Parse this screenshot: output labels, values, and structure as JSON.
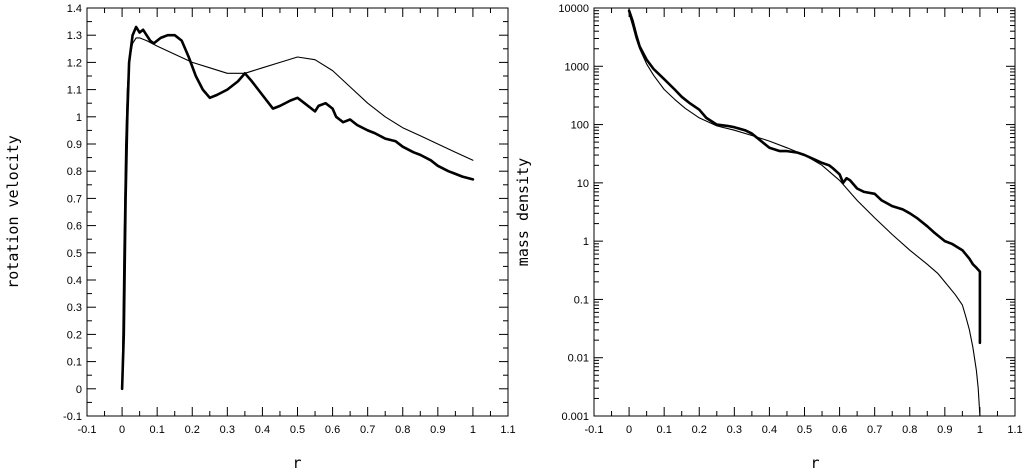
{
  "chart_data": [
    {
      "type": "line",
      "xlabel": "r",
      "ylabel": "rotation velocity",
      "xlim": [
        -0.1,
        1.1
      ],
      "ylim": [
        -0.1,
        1.4
      ],
      "xscale": "linear",
      "yscale": "linear",
      "xticks": [
        "-0.1",
        "0",
        "0.1",
        "0.2",
        "0.3",
        "0.4",
        "0.5",
        "0.6",
        "0.7",
        "0.8",
        "0.9",
        "1",
        "1.1"
      ],
      "yticks": [
        "-0.1",
        "0",
        "0.1",
        "0.2",
        "0.3",
        "0.4",
        "0.5",
        "0.6",
        "0.7",
        "0.8",
        "0.9",
        "1",
        "1.1",
        "1.2",
        "1.3",
        "1.4"
      ],
      "grid": false,
      "series": [
        {
          "style": "thin",
          "x": [
            0,
            0.005,
            0.01,
            0.015,
            0.02,
            0.03,
            0.04,
            0.05,
            0.07,
            0.1,
            0.15,
            0.2,
            0.25,
            0.3,
            0.35,
            0.4,
            0.45,
            0.5,
            0.55,
            0.6,
            0.65,
            0.7,
            0.75,
            0.8,
            0.85,
            0.9,
            0.95,
            1.0
          ],
          "y": [
            0,
            0.5,
            0.9,
            1.1,
            1.2,
            1.27,
            1.29,
            1.29,
            1.28,
            1.26,
            1.23,
            1.2,
            1.18,
            1.16,
            1.16,
            1.18,
            1.2,
            1.22,
            1.21,
            1.17,
            1.11,
            1.05,
            1.0,
            0.96,
            0.93,
            0.9,
            0.87,
            0.84
          ]
        },
        {
          "style": "thick",
          "x": [
            0,
            0.005,
            0.01,
            0.015,
            0.02,
            0.03,
            0.04,
            0.045,
            0.05,
            0.06,
            0.07,
            0.08,
            0.09,
            0.1,
            0.11,
            0.13,
            0.15,
            0.17,
            0.19,
            0.21,
            0.23,
            0.25,
            0.27,
            0.3,
            0.33,
            0.35,
            0.37,
            0.4,
            0.43,
            0.45,
            0.48,
            0.5,
            0.52,
            0.55,
            0.56,
            0.58,
            0.6,
            0.61,
            0.62,
            0.63,
            0.65,
            0.67,
            0.7,
            0.72,
            0.75,
            0.78,
            0.8,
            0.83,
            0.85,
            0.88,
            0.9,
            0.93,
            0.95,
            0.97,
            1.0
          ],
          "y": [
            0,
            0.2,
            0.7,
            1.0,
            1.2,
            1.3,
            1.33,
            1.32,
            1.31,
            1.32,
            1.3,
            1.28,
            1.27,
            1.28,
            1.29,
            1.3,
            1.3,
            1.28,
            1.22,
            1.15,
            1.1,
            1.07,
            1.08,
            1.1,
            1.13,
            1.16,
            1.13,
            1.08,
            1.03,
            1.04,
            1.06,
            1.07,
            1.05,
            1.02,
            1.04,
            1.05,
            1.03,
            1.0,
            0.99,
            0.98,
            0.99,
            0.97,
            0.95,
            0.94,
            0.92,
            0.91,
            0.89,
            0.87,
            0.86,
            0.84,
            0.82,
            0.8,
            0.79,
            0.78,
            0.77
          ]
        }
      ]
    },
    {
      "type": "line",
      "xlabel": "r",
      "ylabel": "mass density",
      "xlim": [
        -0.1,
        1.1
      ],
      "ylim": [
        0.001,
        10000
      ],
      "xscale": "linear",
      "yscale": "log",
      "xticks": [
        "-0.1",
        "0",
        "0.1",
        "0.2",
        "0.3",
        "0.4",
        "0.5",
        "0.6",
        "0.7",
        "0.8",
        "0.9",
        "1",
        "1.1"
      ],
      "yticks": [
        "0.001",
        "0.01",
        "0.1",
        "1",
        "10",
        "100",
        "1000",
        "10000"
      ],
      "grid": false,
      "series": [
        {
          "style": "thin",
          "x": [
            0,
            0.01,
            0.02,
            0.03,
            0.05,
            0.07,
            0.1,
            0.13,
            0.16,
            0.2,
            0.25,
            0.3,
            0.35,
            0.4,
            0.45,
            0.5,
            0.55,
            0.6,
            0.65,
            0.7,
            0.75,
            0.8,
            0.85,
            0.88,
            0.9,
            0.93,
            0.95,
            0.96,
            0.97,
            0.98,
            0.99,
            0.995,
            1.0
          ],
          "y": [
            8000,
            5000,
            3000,
            2000,
            1100,
            700,
            400,
            270,
            190,
            130,
            95,
            80,
            65,
            52,
            40,
            30,
            20,
            11,
            5,
            2.5,
            1.3,
            0.7,
            0.4,
            0.28,
            0.2,
            0.12,
            0.08,
            0.05,
            0.03,
            0.015,
            0.006,
            0.003,
            0.001
          ]
        },
        {
          "style": "thick",
          "x": [
            0,
            0.01,
            0.02,
            0.03,
            0.05,
            0.07,
            0.1,
            0.13,
            0.15,
            0.17,
            0.2,
            0.22,
            0.25,
            0.28,
            0.3,
            0.33,
            0.35,
            0.38,
            0.4,
            0.43,
            0.45,
            0.48,
            0.5,
            0.53,
            0.55,
            0.57,
            0.58,
            0.6,
            0.61,
            0.62,
            0.63,
            0.65,
            0.67,
            0.7,
            0.72,
            0.75,
            0.78,
            0.8,
            0.82,
            0.85,
            0.87,
            0.9,
            0.92,
            0.95,
            0.97,
            0.98,
            0.99,
            1.0,
            1.0
          ],
          "y": [
            9000,
            6000,
            3500,
            2200,
            1300,
            900,
            600,
            400,
            300,
            240,
            180,
            130,
            100,
            95,
            90,
            80,
            70,
            50,
            40,
            35,
            35,
            33,
            30,
            25,
            22,
            20,
            18,
            14,
            10,
            12,
            11,
            8,
            7,
            6.5,
            5,
            4,
            3.5,
            3,
            2.5,
            1.8,
            1.4,
            1.0,
            0.9,
            0.7,
            0.5,
            0.4,
            0.35,
            0.3,
            0.018
          ]
        }
      ]
    }
  ]
}
